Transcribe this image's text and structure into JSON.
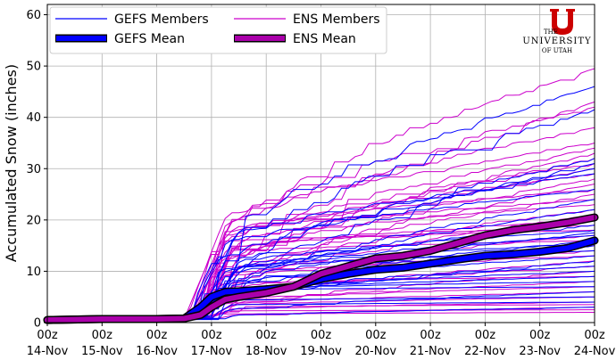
{
  "chart_data": {
    "type": "line",
    "xlabel": "",
    "ylabel": "Accumulated Snow (inches)",
    "ylim": [
      0,
      62
    ],
    "xlim": [
      0,
      10
    ],
    "x_ticks": [
      {
        "top": "00z",
        "bottom": "14-Nov"
      },
      {
        "top": "00z",
        "bottom": "15-Nov"
      },
      {
        "top": "00z",
        "bottom": "16-Nov"
      },
      {
        "top": "00z",
        "bottom": "17-Nov"
      },
      {
        "top": "00z",
        "bottom": "18-Nov"
      },
      {
        "top": "00z",
        "bottom": "19-Nov"
      },
      {
        "top": "00z",
        "bottom": "20-Nov"
      },
      {
        "top": "00z",
        "bottom": "21-Nov"
      },
      {
        "top": "00z",
        "bottom": "22-Nov"
      },
      {
        "top": "00z",
        "bottom": "23-Nov"
      },
      {
        "top": "00z",
        "bottom": "24-Nov"
      }
    ],
    "y_ticks": [
      "0",
      "10",
      "20",
      "30",
      "40",
      "50",
      "60"
    ],
    "grid": true,
    "legend_position": "top-left",
    "legend": [
      {
        "label": "GEFS Members",
        "color": "#0000ff",
        "style": "thin"
      },
      {
        "label": "ENS Members",
        "color": "#cc00cc",
        "style": "thin"
      },
      {
        "label": "GEFS Mean",
        "color": "#0000ff",
        "style": "thick"
      },
      {
        "label": "ENS Mean",
        "color": "#aa00aa",
        "style": "thick"
      }
    ],
    "x_unit": "days since 14-Nov 00z",
    "series": [
      {
        "name": "GEFS Mean",
        "color": "#0000ff",
        "x": [
          0,
          1,
          2,
          2.5,
          2.8,
          3,
          3.25,
          3.5,
          4,
          4.5,
          5,
          5.5,
          6,
          6.5,
          7,
          7.5,
          8,
          8.5,
          9,
          9.5,
          10
        ],
        "values": [
          0.5,
          0.7,
          0.7,
          0.8,
          3.0,
          5.0,
          6.0,
          6.1,
          6.5,
          7.0,
          8.5,
          9.5,
          10.3,
          10.7,
          11.5,
          12.3,
          13.0,
          13.3,
          13.8,
          14.5,
          16.0
        ]
      },
      {
        "name": "ENS Mean",
        "color": "#aa00aa",
        "x": [
          0,
          1,
          2,
          2.5,
          2.8,
          3,
          3.25,
          3.5,
          4,
          4.5,
          5,
          5.5,
          6,
          6.5,
          7,
          7.5,
          8,
          8.5,
          9,
          9.5,
          10
        ],
        "values": [
          0.5,
          0.7,
          0.7,
          0.8,
          1.5,
          3.0,
          4.5,
          5.0,
          5.8,
          7.0,
          9.5,
          11.0,
          12.5,
          13.0,
          14.0,
          15.5,
          17.0,
          18.0,
          18.7,
          19.5,
          20.5
        ]
      }
    ],
    "members": {
      "gefs_final_values": [
        46,
        41.5,
        32,
        31,
        30,
        29,
        26,
        24,
        22,
        19,
        18,
        17.5,
        17,
        16,
        15.5,
        15,
        14,
        13,
        12,
        11,
        10,
        9,
        8,
        7,
        6,
        5,
        4,
        3
      ],
      "ens_final_values": [
        49.5,
        43,
        42,
        38,
        35,
        34,
        33,
        32,
        31,
        30,
        29,
        28,
        27,
        26,
        25,
        24,
        23,
        22,
        21,
        20,
        19,
        18,
        17,
        16,
        15,
        14,
        13,
        12,
        11,
        10,
        9,
        8,
        7,
        6,
        5,
        4,
        3.5,
        3,
        2.5,
        2
      ]
    },
    "logo": {
      "line1": "THE",
      "line2": "UNIVERSITY",
      "line3": "OF UTAH",
      "mark": "U"
    }
  }
}
